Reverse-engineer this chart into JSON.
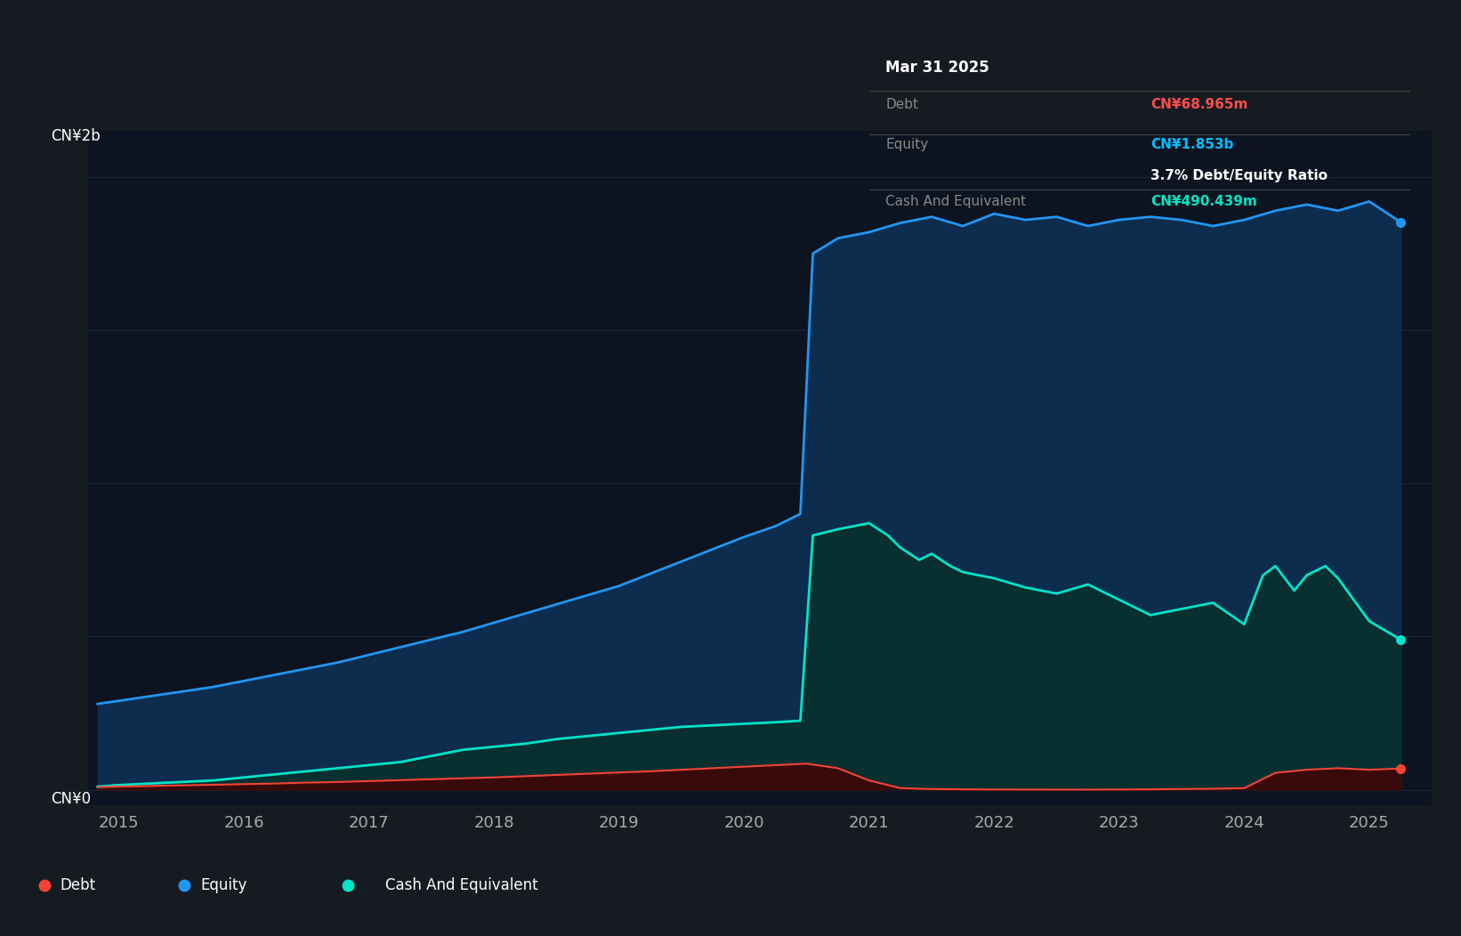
{
  "background_color": "#161b22",
  "plot_bg_color": "#0d1421",
  "ylabel_top": "CN¥2b",
  "ylabel_zero": "CN¥0",
  "tooltip": {
    "date": "Mar 31 2025",
    "debt_label": "Debt",
    "debt_value": "CN¥68.965m",
    "equity_label": "Equity",
    "equity_value": "CN¥1.853b",
    "ratio_text": "3.7% Debt/Equity Ratio",
    "cash_label": "Cash And Equivalent",
    "cash_value": "CN¥490.439m",
    "tooltip_bg": "#000000",
    "tooltip_border": "#444444",
    "debt_color": "#ff4d4d",
    "equity_color": "#00bfff",
    "cash_color": "#00e5c8",
    "ratio_color": "#ffffff",
    "label_color": "#888888",
    "date_color": "#ffffff"
  },
  "equity_color": "#2196f3",
  "debt_color": "#f44336",
  "cash_color": "#00e5c8",
  "equity_fill": "#0d2d4f",
  "cash_fill": "#083030",
  "debt_fill": "#3a0a0a",
  "grid_color": "#1e2a3a",
  "tick_color": "#aaaaaa",
  "xlim": [
    2014.75,
    2025.5
  ],
  "ylim": [
    -50000000.0,
    2150000000.0
  ],
  "ytick_labels": [
    "CN¥2b",
    "CN¥0"
  ],
  "ytick_vals": [
    2000000000.0,
    0
  ],
  "xtick_years": [
    2015,
    2016,
    2017,
    2018,
    2019,
    2020,
    2021,
    2022,
    2023,
    2024,
    2025
  ],
  "equity_x": [
    2014.83,
    2015.0,
    2015.25,
    2015.5,
    2015.75,
    2016.0,
    2016.25,
    2016.5,
    2016.75,
    2017.0,
    2017.25,
    2017.5,
    2017.75,
    2018.0,
    2018.25,
    2018.5,
    2018.75,
    2019.0,
    2019.25,
    2019.5,
    2019.75,
    2020.0,
    2020.25,
    2020.45,
    2020.55,
    2020.75,
    2021.0,
    2021.25,
    2021.5,
    2021.75,
    2022.0,
    2022.25,
    2022.5,
    2022.75,
    2023.0,
    2023.25,
    2023.5,
    2023.75,
    2024.0,
    2024.25,
    2024.5,
    2024.75,
    2025.0,
    2025.25
  ],
  "equity_y": [
    280000000.0,
    290000000.0,
    305000000.0,
    320000000.0,
    335000000.0,
    355000000.0,
    375000000.0,
    395000000.0,
    415000000.0,
    440000000.0,
    465000000.0,
    490000000.0,
    515000000.0,
    545000000.0,
    575000000.0,
    605000000.0,
    635000000.0,
    665000000.0,
    705000000.0,
    745000000.0,
    785000000.0,
    825000000.0,
    860000000.0,
    900000000.0,
    1750000000.0,
    1800000000.0,
    1820000000.0,
    1850000000.0,
    1870000000.0,
    1840000000.0,
    1880000000.0,
    1860000000.0,
    1870000000.0,
    1840000000.0,
    1860000000.0,
    1870000000.0,
    1860000000.0,
    1840000000.0,
    1860000000.0,
    1890000000.0,
    1910000000.0,
    1890000000.0,
    1920000000.0,
    1853000000.0
  ],
  "cash_x": [
    2014.83,
    2015.0,
    2015.25,
    2015.5,
    2015.75,
    2016.0,
    2016.25,
    2016.5,
    2016.75,
    2017.0,
    2017.25,
    2017.5,
    2017.75,
    2018.0,
    2018.25,
    2018.5,
    2018.75,
    2019.0,
    2019.25,
    2019.5,
    2019.75,
    2020.0,
    2020.25,
    2020.45,
    2020.55,
    2020.75,
    2021.0,
    2021.15,
    2021.25,
    2021.4,
    2021.5,
    2021.65,
    2021.75,
    2022.0,
    2022.25,
    2022.5,
    2022.75,
    2023.0,
    2023.25,
    2023.5,
    2023.75,
    2024.0,
    2024.15,
    2024.25,
    2024.4,
    2024.5,
    2024.65,
    2024.75,
    2025.0,
    2025.25
  ],
  "cash_y": [
    10000000.0,
    15000000.0,
    20000000.0,
    25000000.0,
    30000000.0,
    40000000.0,
    50000000.0,
    60000000.0,
    70000000.0,
    80000000.0,
    90000000.0,
    110000000.0,
    130000000.0,
    140000000.0,
    150000000.0,
    165000000.0,
    175000000.0,
    185000000.0,
    195000000.0,
    205000000.0,
    210000000.0,
    215000000.0,
    220000000.0,
    225000000.0,
    830000000.0,
    850000000.0,
    870000000.0,
    830000000.0,
    790000000.0,
    750000000.0,
    770000000.0,
    730000000.0,
    710000000.0,
    690000000.0,
    660000000.0,
    640000000.0,
    670000000.0,
    620000000.0,
    570000000.0,
    590000000.0,
    610000000.0,
    540000000.0,
    700000000.0,
    730000000.0,
    650000000.0,
    700000000.0,
    730000000.0,
    690000000.0,
    550000000.0,
    490000000.0
  ],
  "debt_x": [
    2014.83,
    2015.0,
    2015.25,
    2015.5,
    2015.75,
    2016.0,
    2016.25,
    2016.5,
    2016.75,
    2017.0,
    2017.25,
    2017.5,
    2017.75,
    2018.0,
    2018.25,
    2018.5,
    2018.75,
    2019.0,
    2019.25,
    2019.5,
    2019.75,
    2020.0,
    2020.25,
    2020.5,
    2020.75,
    2021.0,
    2021.25,
    2021.5,
    2021.75,
    2022.0,
    2022.25,
    2022.5,
    2022.75,
    2023.0,
    2023.25,
    2023.5,
    2023.75,
    2024.0,
    2024.25,
    2024.5,
    2024.75,
    2025.0,
    2025.25
  ],
  "debt_y": [
    8000000.0,
    10000000.0,
    12000000.0,
    14000000.0,
    16000000.0,
    18000000.0,
    20000000.0,
    23000000.0,
    25000000.0,
    28000000.0,
    31000000.0,
    34000000.0,
    37000000.0,
    40000000.0,
    44000000.0,
    48000000.0,
    52000000.0,
    56000000.0,
    60000000.0,
    65000000.0,
    70000000.0,
    75000000.0,
    80000000.0,
    85000000.0,
    70000000.0,
    30000000.0,
    5000000.0,
    2000000.0,
    1000000.0,
    500000.0,
    300000.0,
    200000.0,
    100000.0,
    500000.0,
    1000000.0,
    2000000.0,
    3000000.0,
    5000000.0,
    55000000.0,
    65000000.0,
    70000000.0,
    65000000.0,
    68965000.0
  ]
}
